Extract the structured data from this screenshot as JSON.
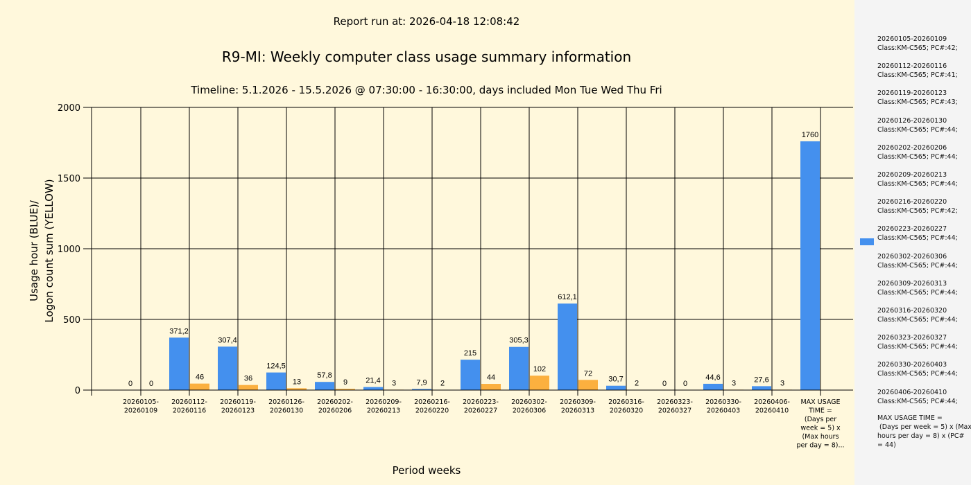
{
  "header": {
    "report_run": "Report run at: 2026-04-18 12:08:42",
    "title": "R9-MI: Weekly computer class usage summary information",
    "subtitle": "Timeline:  5.1.2026  - 15.5.2026  @  07:30:00 -  16:30:00, days included Mon Tue Wed Thu Fri"
  },
  "legend": {
    "items": [
      [
        "20260105-20260109",
        "Class:KM-C565; PC#:42;"
      ],
      [
        "20260112-20260116",
        "Class:KM-C565; PC#:41;"
      ],
      [
        "20260119-20260123",
        "Class:KM-C565; PC#:43;"
      ],
      [
        "20260126-20260130",
        "Class:KM-C565; PC#:44;"
      ],
      [
        "20260202-20260206",
        "Class:KM-C565; PC#:44;"
      ],
      [
        "20260209-20260213",
        "Class:KM-C565; PC#:44;"
      ],
      [
        "20260216-20260220",
        "Class:KM-C565; PC#:42;"
      ],
      [
        "20260223-20260227",
        "Class:KM-C565; PC#:44;"
      ],
      [
        "20260302-20260306",
        "Class:KM-C565; PC#:44;"
      ],
      [
        "20260309-20260313",
        "Class:KM-C565; PC#:44;"
      ],
      [
        "20260316-20260320",
        "Class:KM-C565; PC#:44;"
      ],
      [
        "20260323-20260327",
        "Class:KM-C565; PC#:44;"
      ],
      [
        "20260330-20260403",
        "Class:KM-C565; PC#:44;"
      ],
      [
        "20260406-20260410",
        "Class:KM-C565; PC#:44;"
      ]
    ],
    "max_note": [
      "MAX USAGE TIME =",
      " (Days per week = 5) x (Max",
      "hours per day = 8) x (PC#",
      "= 44)"
    ]
  },
  "colors": {
    "blue": "#4490ee",
    "yellow": "#fbb03f",
    "background": "#fff8dc",
    "legend_bg": "#f4f4f4"
  },
  "chart_data": {
    "type": "bar",
    "xlabel": "Period weeks",
    "ylabel": [
      "Usage hour (BLUE)/",
      "Logon count sum (YELLOW)"
    ],
    "ylim": [
      0,
      2000
    ],
    "yticks": [
      0,
      500,
      1000,
      1500,
      2000
    ],
    "grid": true,
    "legend_position": "right",
    "categories": [
      [
        "20260105-",
        "20260109"
      ],
      [
        "20260112-",
        "20260116"
      ],
      [
        "20260119-",
        "20260123"
      ],
      [
        "20260126-",
        "20260130"
      ],
      [
        "20260202-",
        "20260206"
      ],
      [
        "20260209-",
        "20260213"
      ],
      [
        "20260216-",
        "20260220"
      ],
      [
        "20260223-",
        "20260227"
      ],
      [
        "20260302-",
        "20260306"
      ],
      [
        "20260309-",
        "20260313"
      ],
      [
        "20260316-",
        "20260320"
      ],
      [
        "20260323-",
        "20260327"
      ],
      [
        "20260330-",
        "20260403"
      ],
      [
        "20260406-",
        "20260410"
      ],
      [
        "MAX USAGE",
        "TIME =",
        "(Days per",
        "week = 5) x",
        "(Max hours",
        "per day = 8)..."
      ]
    ],
    "series": [
      {
        "name": "Usage hour (BLUE)",
        "values": [
          0,
          371.2,
          307.4,
          124.5,
          57.8,
          21.4,
          7.9,
          215,
          305.3,
          612.1,
          30.7,
          0,
          44.6,
          27.6,
          1760
        ],
        "labels": [
          "0",
          "371,2",
          "307,4",
          "124,5",
          "57,8",
          "21,4",
          "7,9",
          "215",
          "305,3",
          "612,1",
          "30,7",
          "0",
          "44,6",
          "27,6",
          "1760"
        ]
      },
      {
        "name": "Logon count sum (YELLOW)",
        "values": [
          0,
          46,
          36,
          13,
          9,
          3,
          2,
          44,
          102,
          72,
          2,
          0,
          3,
          3,
          null
        ],
        "labels": [
          "0",
          "46",
          "36",
          "13",
          "9",
          "3",
          "2",
          "44",
          "102",
          "72",
          "2",
          "0",
          "3",
          "3",
          null
        ]
      }
    ]
  }
}
